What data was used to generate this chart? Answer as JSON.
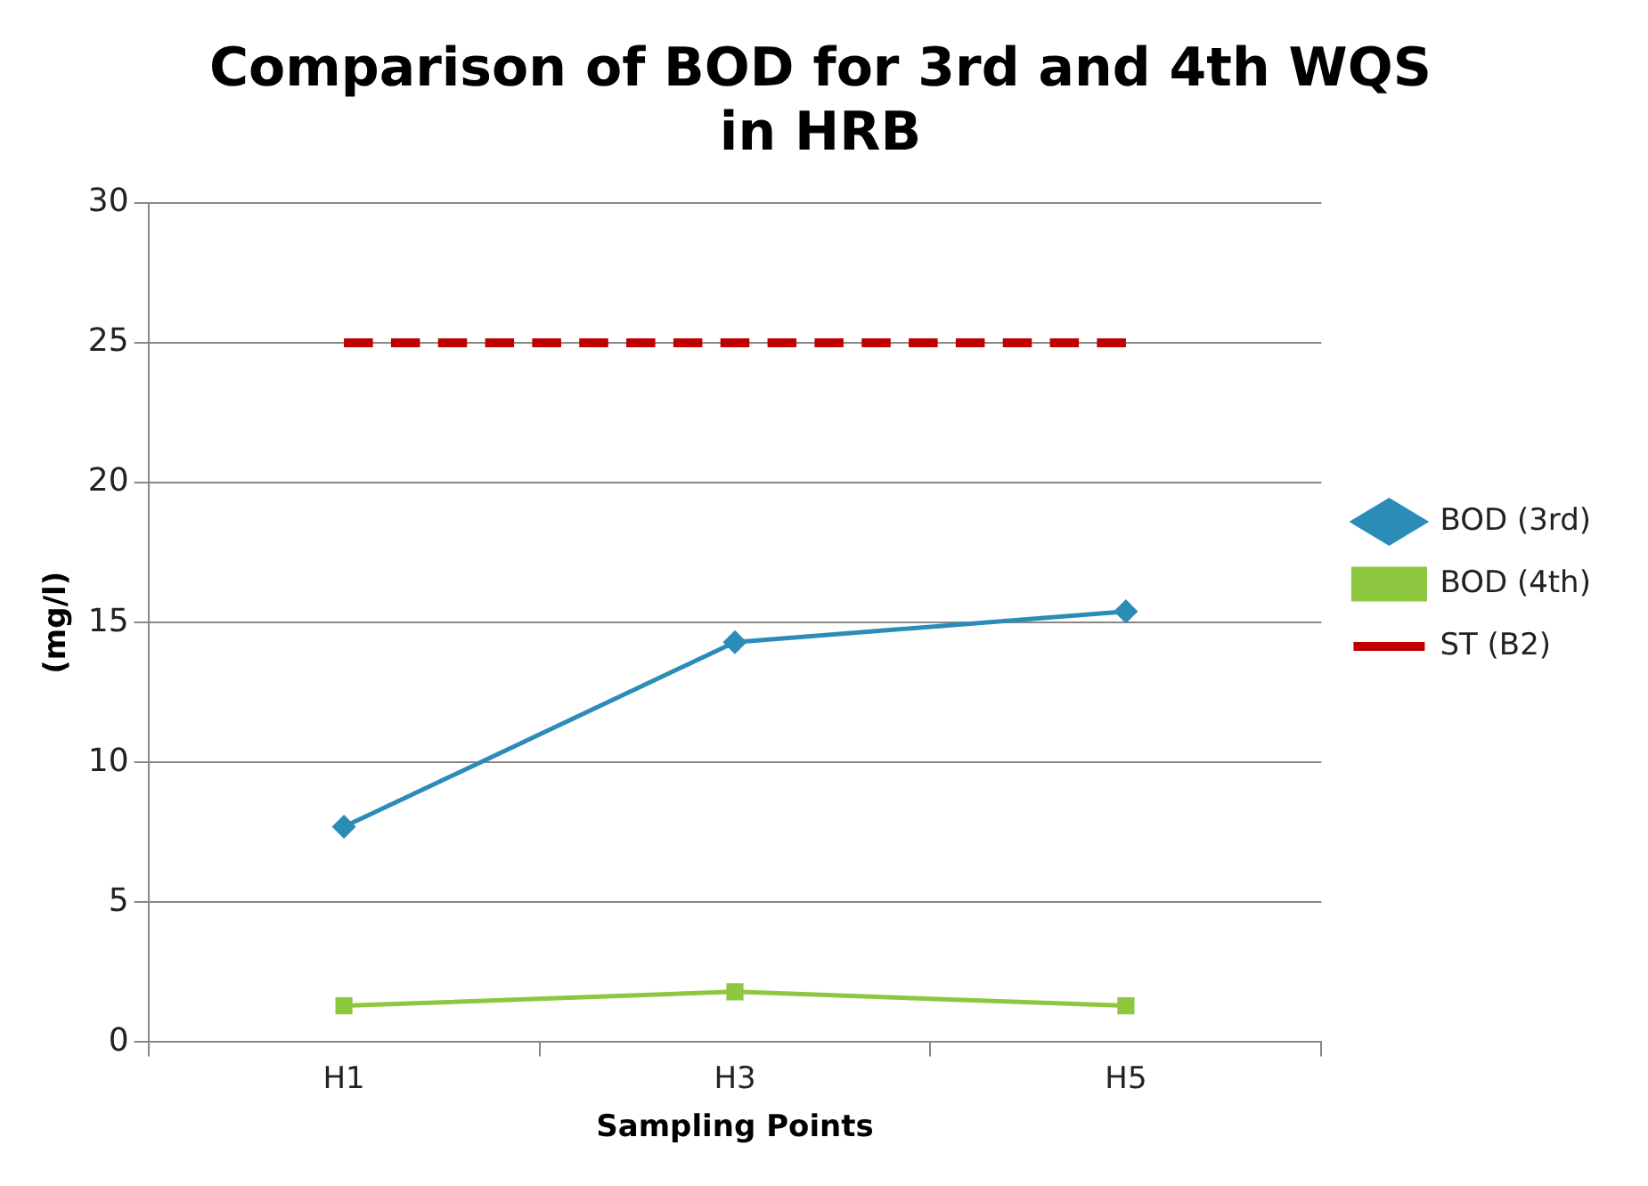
{
  "chart_data": {
    "type": "line",
    "title": "Comparison of BOD for 3rd and 4th WQS in HRB",
    "xlabel": "Sampling Points",
    "ylabel": "(mg/l)",
    "categories": [
      "H1",
      "H3",
      "H5"
    ],
    "series": [
      {
        "name": "BOD (3rd)",
        "color": "#2b8cb8",
        "values": [
          7.7,
          14.3,
          15.4
        ],
        "marker": "diamond",
        "line_style": "solid"
      },
      {
        "name": "BOD (4th)",
        "color": "#8dc63f",
        "values": [
          1.3,
          1.8,
          1.3
        ],
        "marker": "square",
        "line_style": "solid"
      },
      {
        "name": "ST (B2)",
        "color": "#c00000",
        "values": [
          25,
          25,
          25
        ],
        "marker": "none",
        "line_style": "dashed"
      }
    ],
    "ylim": [
      0,
      30
    ],
    "yticks": [
      0,
      5,
      10,
      15,
      20,
      25,
      30
    ],
    "grid": "y",
    "legend": "right"
  }
}
